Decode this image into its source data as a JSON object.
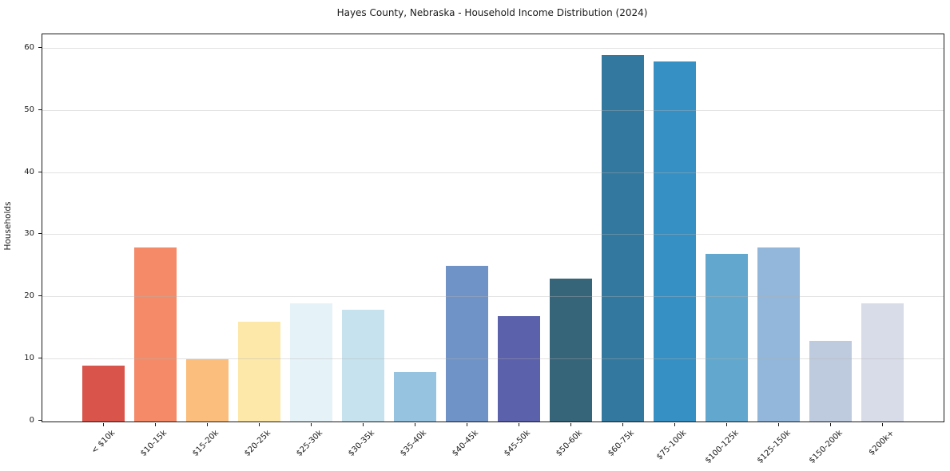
{
  "chart_data": {
    "type": "bar",
    "title": "Hayes County, Nebraska - Household Income Distribution (2024)",
    "xlabel": "",
    "ylabel": "Households",
    "categories": [
      "< $10k",
      "$10-15k",
      "$15-20k",
      "$20-25k",
      "$25-30k",
      "$30-35k",
      "$35-40k",
      "$40-45k",
      "$45-50k",
      "$50-60k",
      "$60-75k",
      "$75-100k",
      "$100-125k",
      "$125-150k",
      "$150-200k",
      "$200k+"
    ],
    "values": [
      9,
      28,
      10,
      16,
      19,
      18,
      8,
      25,
      17,
      23,
      59,
      58,
      27,
      28,
      13,
      19
    ],
    "bar_colors": [
      "#d9544a",
      "#f48a68",
      "#fcbe7d",
      "#fde8a9",
      "#e5f2f8",
      "#c5e2ee",
      "#96c3df",
      "#7093c7",
      "#5b61aa",
      "#366478",
      "#33789f",
      "#3790c4",
      "#62a8ce",
      "#92b7da",
      "#becadd",
      "#d8dbe8"
    ],
    "ylim": [
      0,
      62.3
    ],
    "yticks": [
      0,
      10,
      20,
      30,
      40,
      50,
      60
    ],
    "grid": "horizontal",
    "legend": "none"
  }
}
